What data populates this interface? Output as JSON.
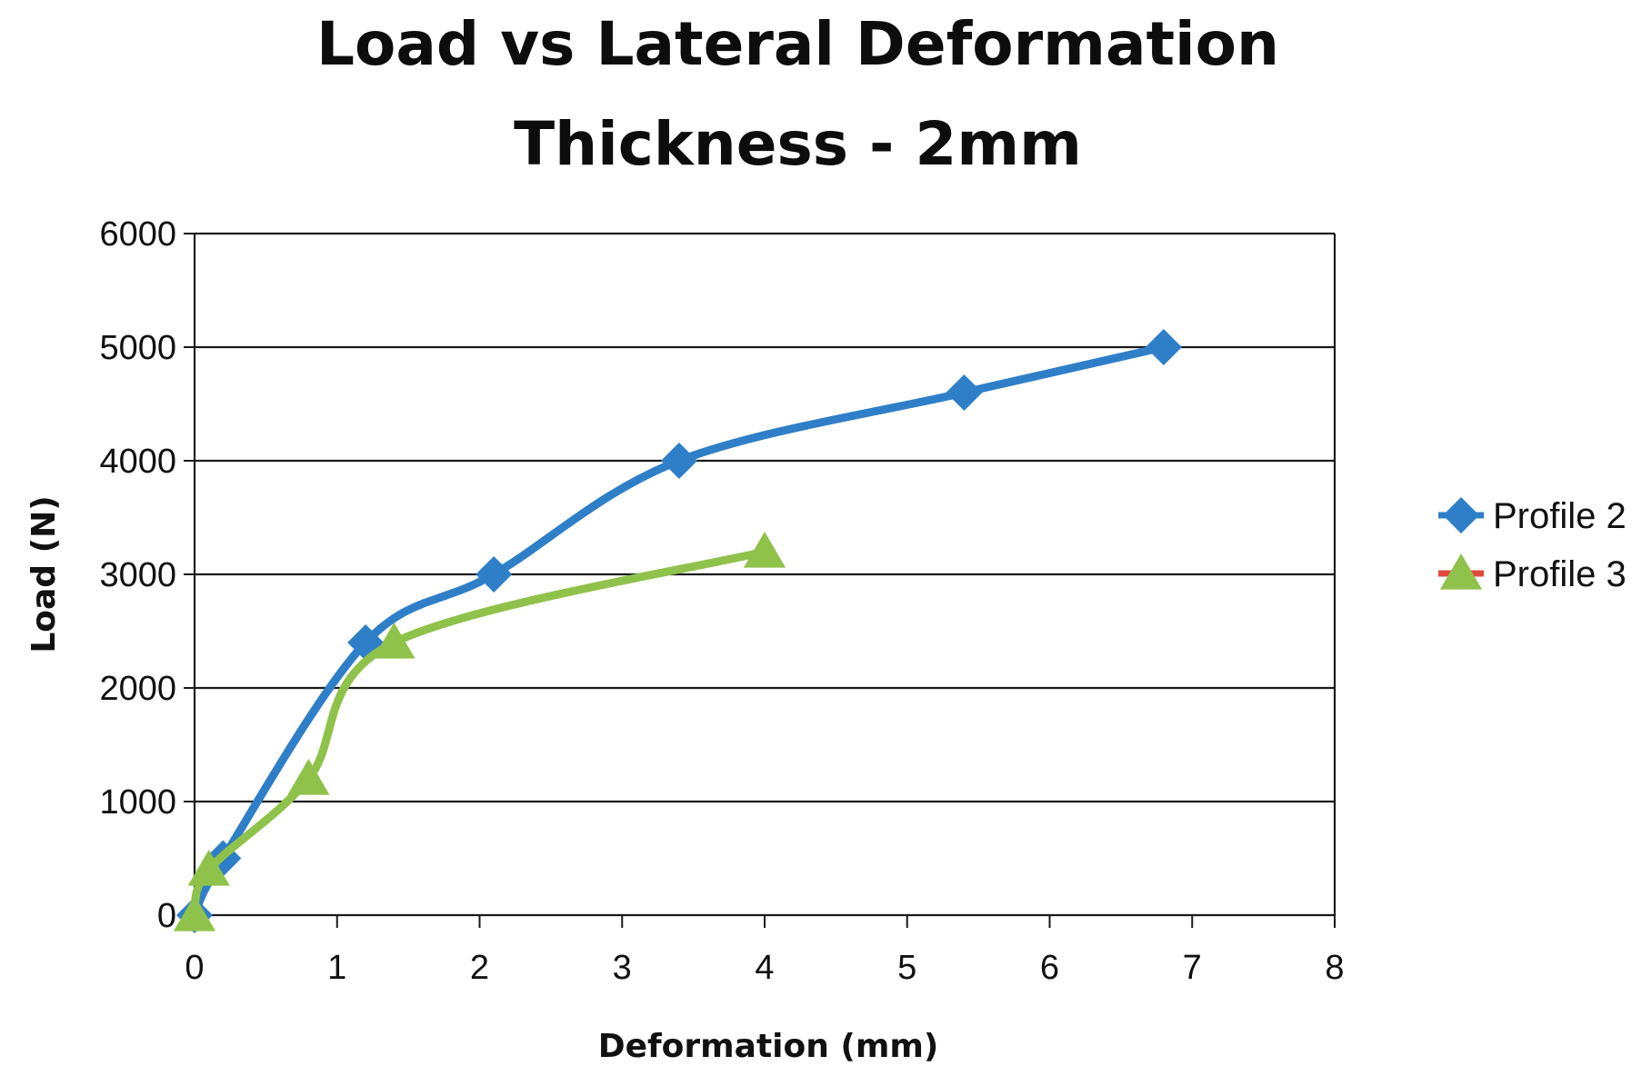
{
  "chart_data": {
    "type": "line",
    "title": "Load vs Lateral Deformation",
    "subtitle": "Thickness - 2mm",
    "xlabel": "Deformation (mm)",
    "ylabel": "Load (N)",
    "xlim": [
      0,
      8
    ],
    "ylim": [
      0,
      6000
    ],
    "x_ticks": [
      "0",
      "1",
      "2",
      "3",
      "4",
      "5",
      "6",
      "7",
      "8"
    ],
    "y_ticks": [
      "0",
      "1000",
      "2000",
      "3000",
      "4000",
      "5000",
      "6000"
    ],
    "grid": "horizontal",
    "legend_position": "right",
    "series": [
      {
        "name": "Profile 2",
        "color": "#2f7fc8",
        "marker": "diamond",
        "x": [
          0,
          0.2,
          1.2,
          2.1,
          3.4,
          5.4,
          6.8
        ],
        "y": [
          0,
          500,
          2400,
          3000,
          4000,
          4600,
          5000
        ]
      },
      {
        "name": "Profile 3",
        "color": "#8fc24a",
        "legend_line_color": "#e04a3c",
        "marker": "triangle",
        "x": [
          0,
          0.1,
          0.8,
          1.4,
          4.0
        ],
        "y": [
          0,
          400,
          1200,
          2400,
          3200
        ]
      }
    ]
  }
}
